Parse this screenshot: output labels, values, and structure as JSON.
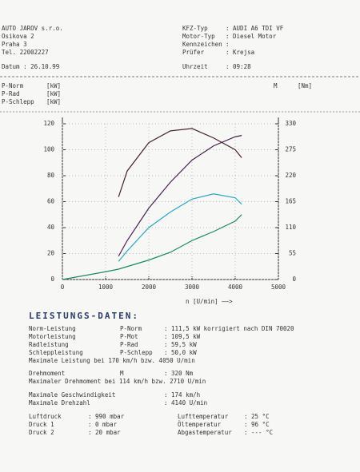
{
  "header": {
    "left": [
      "AUTO JAROV s.r.o.",
      "Osikova 2",
      "Praha 3",
      "Tel. 22002227",
      "Datum : 26.10.99"
    ],
    "right": [
      [
        "KFZ-Typ",
        ": AUDI A6 TDI VF"
      ],
      [
        "Motor-Typ",
        ": Diesel Motor"
      ],
      [
        "Kennzeichen",
        ":"
      ],
      [
        "Prüfer",
        ": Krejsa"
      ],
      [
        "Uhrzeit",
        ": 09:28"
      ]
    ]
  },
  "chart_data": {
    "type": "line",
    "x": [
      0,
      500,
      1000,
      1300,
      1500,
      2000,
      2500,
      3000,
      3500,
      4000,
      4150
    ],
    "series": [
      {
        "name": "P-Norm",
        "unit": "[kW]",
        "color": "#4a1f55",
        "values": [
          null,
          null,
          null,
          18,
          30,
          55,
          75,
          92,
          103,
          110,
          111
        ]
      },
      {
        "name": "P-Rad",
        "unit": "[kW]",
        "color": "#2aa6c4",
        "values": [
          null,
          null,
          null,
          14,
          22,
          40,
          52,
          62,
          66,
          63,
          58
        ]
      },
      {
        "name": "P-Schlepp",
        "unit": "[kW]",
        "color": "#1a8a5e",
        "values": [
          0,
          3,
          6,
          8,
          10,
          15,
          21,
          30,
          37,
          45,
          50
        ]
      },
      {
        "name": "M",
        "unit": "[Nm]",
        "color": "#4a2030",
        "axis": "y2",
        "values": [
          null,
          null,
          null,
          175,
          230,
          290,
          315,
          320,
          300,
          275,
          258
        ]
      }
    ],
    "xlim": [
      0,
      5000
    ],
    "xticks": [
      0,
      1000,
      2000,
      3000,
      4000,
      5000
    ],
    "ylim": [
      0,
      120
    ],
    "yticks": [
      0,
      20,
      40,
      60,
      80,
      100,
      120
    ],
    "y2lim": [
      0,
      330
    ],
    "y2ticks": [
      0,
      55,
      110,
      165,
      220,
      275,
      330
    ],
    "x_label": "n [U/min] ——>"
  },
  "results": {
    "title": "LEISTUNGS-DATEN:",
    "rows": [
      [
        "Norm-Leistung",
        "P-Norm",
        ": 111,5 kW korrigiert nach DIN 70020"
      ],
      [
        "Motorleistung",
        "P-Mot",
        ": 109,5 kW"
      ],
      [
        "Radleistung",
        "P-Rad",
        ": 59,5 kW"
      ],
      [
        "Schleppleistung",
        "P-Schlepp",
        ": 50,0 kW"
      ],
      [
        "Maximale Leistung bei 170 km/h bzw. 4050 U/min"
      ],
      [
        "Drehmoment",
        "M",
        ": 320 Nm"
      ],
      [
        "Maximaler Drehmoment bei 114 km/h bzw. 2710 U/min"
      ],
      [
        "Maximale Geschwindigkeit",
        ": 174 km/h"
      ],
      [
        "Maximale Drehzahl",
        ": 4140 U/min"
      ]
    ],
    "conditions": [
      [
        "Luftdruck",
        ": 990 mbar",
        "Lufttemperatur",
        ": 25 °C"
      ],
      [
        "Druck 1",
        ": 0 mbar",
        "Öltemperatur",
        ": 96 °C"
      ],
      [
        "Druck 2",
        ": 20 mbar",
        "Abgastemperatur",
        ": --- °C"
      ]
    ]
  }
}
